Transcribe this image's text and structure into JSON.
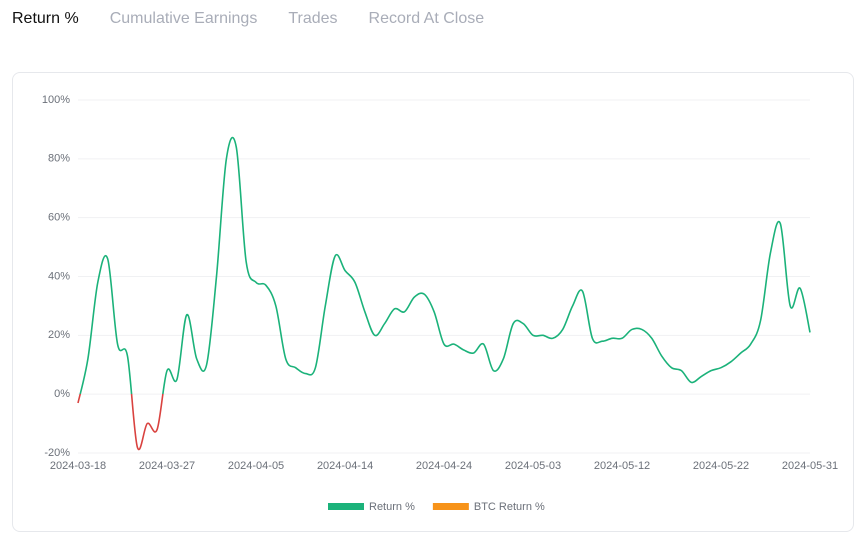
{
  "tabs": [
    "Return %",
    "Cumulative Earnings",
    "Trades",
    "Record At Close"
  ],
  "chart_data": {
    "type": "line",
    "categories": [
      "2024-03-18",
      null,
      null,
      null,
      null,
      null,
      null,
      null,
      null,
      "2024-03-27",
      null,
      null,
      null,
      null,
      null,
      null,
      null,
      null,
      "2024-04-05",
      null,
      null,
      null,
      null,
      null,
      null,
      null,
      null,
      "2024-04-14",
      null,
      null,
      null,
      null,
      null,
      null,
      null,
      null,
      null,
      "2024-04-24",
      null,
      null,
      null,
      null,
      null,
      null,
      null,
      null,
      "2024-05-03",
      null,
      null,
      null,
      null,
      null,
      null,
      null,
      null,
      "2024-05-12",
      null,
      null,
      null,
      null,
      null,
      null,
      null,
      null,
      null,
      "2024-05-22",
      null,
      null,
      null,
      null,
      null,
      null,
      null,
      null,
      "2024-05-31"
    ],
    "series": [
      {
        "name": "Return %",
        "color": "#1bb27a",
        "negative_color": "#d9423f",
        "values": [
          -3,
          12,
          38,
          46,
          17,
          13,
          -18,
          -10,
          -12,
          8,
          5,
          27,
          12,
          10,
          40,
          80,
          84,
          45,
          38,
          37,
          30,
          12,
          9,
          7,
          9,
          30,
          47,
          42,
          38,
          28,
          20,
          24,
          29,
          28,
          33,
          34,
          28,
          17,
          17,
          15,
          14,
          17,
          8,
          12,
          24,
          24,
          20,
          20,
          19,
          22,
          30,
          35,
          19,
          18,
          19,
          19,
          22,
          22,
          19,
          13,
          9,
          8,
          4,
          6,
          8,
          9,
          11,
          14,
          17,
          25,
          48,
          58,
          30,
          36,
          21
        ]
      },
      {
        "name": "BTC Return %",
        "color": "#f7931a",
        "values": [
          null,
          null,
          null,
          null,
          null,
          null,
          null,
          null,
          null,
          null,
          null,
          null,
          null,
          null,
          null,
          null,
          null,
          null,
          null,
          null,
          null,
          null,
          null,
          null,
          null,
          null,
          null,
          null,
          null,
          null,
          null,
          null,
          null,
          null,
          null,
          null,
          null,
          null,
          null,
          null,
          null,
          null,
          null,
          null,
          null,
          null,
          null,
          null,
          null,
          null,
          null,
          null,
          null,
          null,
          null,
          null,
          null,
          null,
          null,
          null,
          null,
          null,
          null,
          null,
          null,
          null,
          null,
          null,
          null,
          null,
          null,
          null,
          null,
          null,
          null
        ]
      }
    ],
    "ylim": [
      -20,
      100
    ],
    "yticks": [
      {
        "value": -20,
        "label": "-20%"
      },
      {
        "value": 0,
        "label": "0%"
      },
      {
        "value": 20,
        "label": "20%"
      },
      {
        "value": 40,
        "label": "40%"
      },
      {
        "value": 60,
        "label": "60%"
      },
      {
        "value": 80,
        "label": "80%"
      },
      {
        "value": 100,
        "label": "100%"
      }
    ],
    "grid": true
  }
}
